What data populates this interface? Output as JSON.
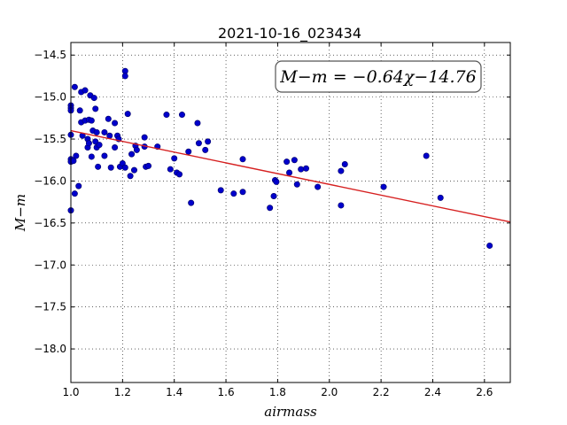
{
  "chart_data": {
    "type": "scatter",
    "title": "2021-10-16_023434",
    "xlabel": "airmass",
    "ylabel": "M−m",
    "xlim": [
      1.0,
      2.7
    ],
    "ylim": [
      -18.4,
      -14.35
    ],
    "xticks": [
      1.0,
      1.2,
      1.4,
      1.6,
      1.8,
      2.0,
      2.2,
      2.4,
      2.6
    ],
    "xtick_labels": [
      "1.0",
      "1.2",
      "1.4",
      "1.6",
      "1.8",
      "2.0",
      "2.2",
      "2.4",
      "2.6"
    ],
    "yticks": [
      -14.5,
      -15.0,
      -15.5,
      -16.0,
      -16.5,
      -17.0,
      -17.5,
      -18.0
    ],
    "ytick_labels": [
      "−14.5",
      "−15.0",
      "−15.5",
      "−16.0",
      "−16.5",
      "−17.0",
      "−17.5",
      "−18.0"
    ],
    "grid": true,
    "annotation": "M−m = −0.64χ−14.76",
    "fit": {
      "slope": -0.64,
      "intercept": -14.76,
      "color": "#d62020"
    },
    "point_color": "#0000cc",
    "points": [
      [
        1.0,
        -15.1
      ],
      [
        1.0,
        -15.13
      ],
      [
        1.0,
        -15.16
      ],
      [
        1.0,
        -15.45
      ],
      [
        1.0,
        -15.74
      ],
      [
        1.0,
        -15.77
      ],
      [
        1.0,
        -16.35
      ],
      [
        1.01,
        -15.76
      ],
      [
        1.015,
        -14.88
      ],
      [
        1.015,
        -16.15
      ],
      [
        1.02,
        -15.7
      ],
      [
        1.03,
        -16.06
      ],
      [
        1.035,
        -15.16
      ],
      [
        1.04,
        -14.94
      ],
      [
        1.04,
        -15.3
      ],
      [
        1.045,
        -15.46
      ],
      [
        1.055,
        -14.92
      ],
      [
        1.055,
        -15.28
      ],
      [
        1.065,
        -15.5
      ],
      [
        1.065,
        -15.6
      ],
      [
        1.07,
        -15.27
      ],
      [
        1.07,
        -15.55
      ],
      [
        1.075,
        -14.98
      ],
      [
        1.08,
        -15.71
      ],
      [
        1.08,
        -15.28
      ],
      [
        1.085,
        -15.4
      ],
      [
        1.09,
        -15.01
      ],
      [
        1.095,
        -15.14
      ],
      [
        1.095,
        -15.53
      ],
      [
        1.1,
        -15.42
      ],
      [
        1.1,
        -15.6
      ],
      [
        1.105,
        -15.83
      ],
      [
        1.11,
        -15.57
      ],
      [
        1.13,
        -15.7
      ],
      [
        1.13,
        -15.42
      ],
      [
        1.145,
        -15.26
      ],
      [
        1.15,
        -15.46
      ],
      [
        1.155,
        -15.84
      ],
      [
        1.17,
        -15.31
      ],
      [
        1.17,
        -15.6
      ],
      [
        1.18,
        -15.46
      ],
      [
        1.185,
        -15.5
      ],
      [
        1.19,
        -15.83
      ],
      [
        1.2,
        -15.79
      ],
      [
        1.21,
        -14.69
      ],
      [
        1.21,
        -14.75
      ],
      [
        1.21,
        -15.84
      ],
      [
        1.22,
        -15.2
      ],
      [
        1.23,
        -15.94
      ],
      [
        1.235,
        -15.68
      ],
      [
        1.245,
        -15.87
      ],
      [
        1.25,
        -15.58
      ],
      [
        1.255,
        -15.63
      ],
      [
        1.285,
        -15.48
      ],
      [
        1.285,
        -15.59
      ],
      [
        1.29,
        -15.83
      ],
      [
        1.3,
        -15.82
      ],
      [
        1.335,
        -15.59
      ],
      [
        1.37,
        -15.21
      ],
      [
        1.385,
        -15.86
      ],
      [
        1.4,
        -15.73
      ],
      [
        1.41,
        -15.9
      ],
      [
        1.42,
        -15.92
      ],
      [
        1.43,
        -15.21
      ],
      [
        1.455,
        -15.65
      ],
      [
        1.465,
        -16.26
      ],
      [
        1.49,
        -15.31
      ],
      [
        1.495,
        -15.55
      ],
      [
        1.52,
        -15.63
      ],
      [
        1.53,
        -15.53
      ],
      [
        1.58,
        -16.11
      ],
      [
        1.63,
        -16.15
      ],
      [
        1.665,
        -15.74
      ],
      [
        1.665,
        -16.13
      ],
      [
        1.77,
        -16.32
      ],
      [
        1.785,
        -16.18
      ],
      [
        1.79,
        -15.99
      ],
      [
        1.795,
        -16.01
      ],
      [
        1.835,
        -15.77
      ],
      [
        1.845,
        -15.9
      ],
      [
        1.865,
        -15.75
      ],
      [
        1.875,
        -16.04
      ],
      [
        1.89,
        -15.86
      ],
      [
        1.91,
        -15.85
      ],
      [
        1.955,
        -16.07
      ],
      [
        2.045,
        -15.88
      ],
      [
        2.045,
        -16.29
      ],
      [
        2.06,
        -15.8
      ],
      [
        2.21,
        -16.07
      ],
      [
        2.375,
        -15.7
      ],
      [
        2.43,
        -16.2
      ],
      [
        2.62,
        -16.77
      ]
    ]
  }
}
